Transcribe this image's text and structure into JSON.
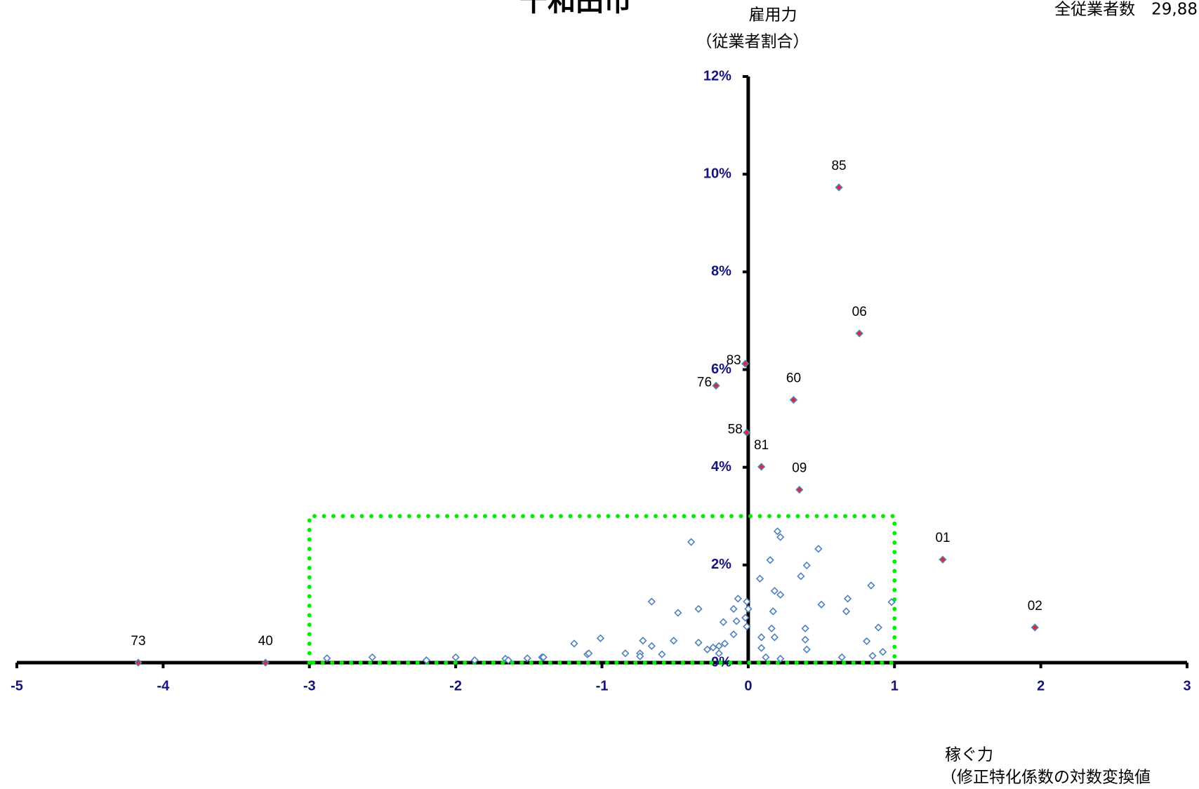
{
  "chart_data": {
    "type": "scatter",
    "title": "十和田市",
    "y_label": [
      "雇用力",
      "（従業者割合）"
    ],
    "x_label": [
      "稼ぐ力",
      "（修正特化係数の対数変換値"
    ],
    "note": "全従業者数　29,88",
    "xlim": [
      -5,
      3
    ],
    "xticks": [
      -5,
      -4,
      -3,
      -2,
      -1,
      0,
      1,
      2,
      3
    ],
    "ylim": [
      0,
      12
    ],
    "yticks": [
      {
        "value": 0,
        "label": "0%"
      },
      {
        "value": 2,
        "label": "2%"
      },
      {
        "value": 4,
        "label": "4%"
      },
      {
        "value": 6,
        "label": "6%"
      },
      {
        "value": 8,
        "label": "8%"
      },
      {
        "value": 10,
        "label": "10%"
      },
      {
        "value": 12,
        "label": "12%"
      }
    ],
    "highlight_box": {
      "x": [
        -3,
        1
      ],
      "y": [
        0,
        3
      ],
      "color": "#00ee00"
    },
    "series": [
      {
        "color": "#4f81bd",
        "fill": "#ffffff",
        "x": [
          -2.88,
          -2.57,
          -2.2,
          -2.0,
          -1.87,
          -1.66,
          -1.64,
          -1.51,
          -1.41,
          -1.4,
          -1.19,
          -1.1,
          -1.09,
          -1.01,
          -0.84,
          -0.74,
          -0.74,
          -0.72,
          -0.66,
          -0.66,
          -0.59,
          -0.51,
          -0.48,
          -0.39,
          -0.34,
          -0.34,
          -0.28,
          -0.24,
          -0.2,
          -0.2,
          -0.17,
          -0.16,
          -0.1,
          -0.1,
          -0.08,
          -0.07,
          -0.02,
          -0.01,
          -0.01,
          0,
          0.08,
          0.09,
          0.09,
          0.12,
          0.15,
          0.16,
          0.17,
          0.18,
          0.18,
          0.2,
          0.22,
          0.22,
          0.22,
          0.36,
          0.4,
          0.39,
          0.39,
          0.4,
          0.48,
          0.5,
          0.64,
          0.67,
          0.68,
          0.81,
          0.84,
          0.85,
          0.89,
          0.92,
          0.98
        ],
        "values": [
          0.09,
          0.11,
          0.05,
          0.11,
          0.05,
          0.08,
          0.05,
          0.09,
          0.11,
          0.11,
          0.39,
          0.17,
          0.19,
          0.5,
          0.19,
          0.19,
          0.13,
          0.45,
          0.34,
          1.25,
          0.17,
          0.45,
          1.02,
          2.47,
          1.1,
          0.41,
          0.27,
          0.31,
          0.34,
          0.19,
          0.83,
          0.39,
          1.1,
          0.58,
          0.85,
          1.31,
          0.92,
          0.74,
          1.25,
          1.1,
          1.72,
          0.52,
          0.3,
          0.11,
          2.1,
          0.7,
          1.05,
          1.47,
          0.52,
          2.69,
          2.57,
          1.39,
          0.08,
          1.77,
          1.99,
          0.7,
          0.47,
          0.27,
          2.33,
          1.19,
          0.11,
          1.05,
          1.31,
          0.44,
          1.58,
          0.14,
          0.72,
          0.22,
          1.24
        ]
      },
      {
        "color": "#4f81bd",
        "fill": "#e8242c",
        "x": [
          -4.17,
          -3.3,
          0.62,
          0.76,
          -0.02,
          -0.22,
          0.31,
          -0.01,
          0.09,
          0.35,
          1.33,
          1.96
        ],
        "values": [
          0,
          0,
          9.73,
          6.74,
          6.12,
          5.67,
          5.38,
          4.71,
          4.01,
          3.54,
          2.11,
          0.72
        ],
        "labels": [
          "73",
          "40",
          "85",
          "06",
          "83",
          "76",
          "60",
          "58",
          "81",
          "09",
          "01",
          "02"
        ]
      }
    ]
  }
}
